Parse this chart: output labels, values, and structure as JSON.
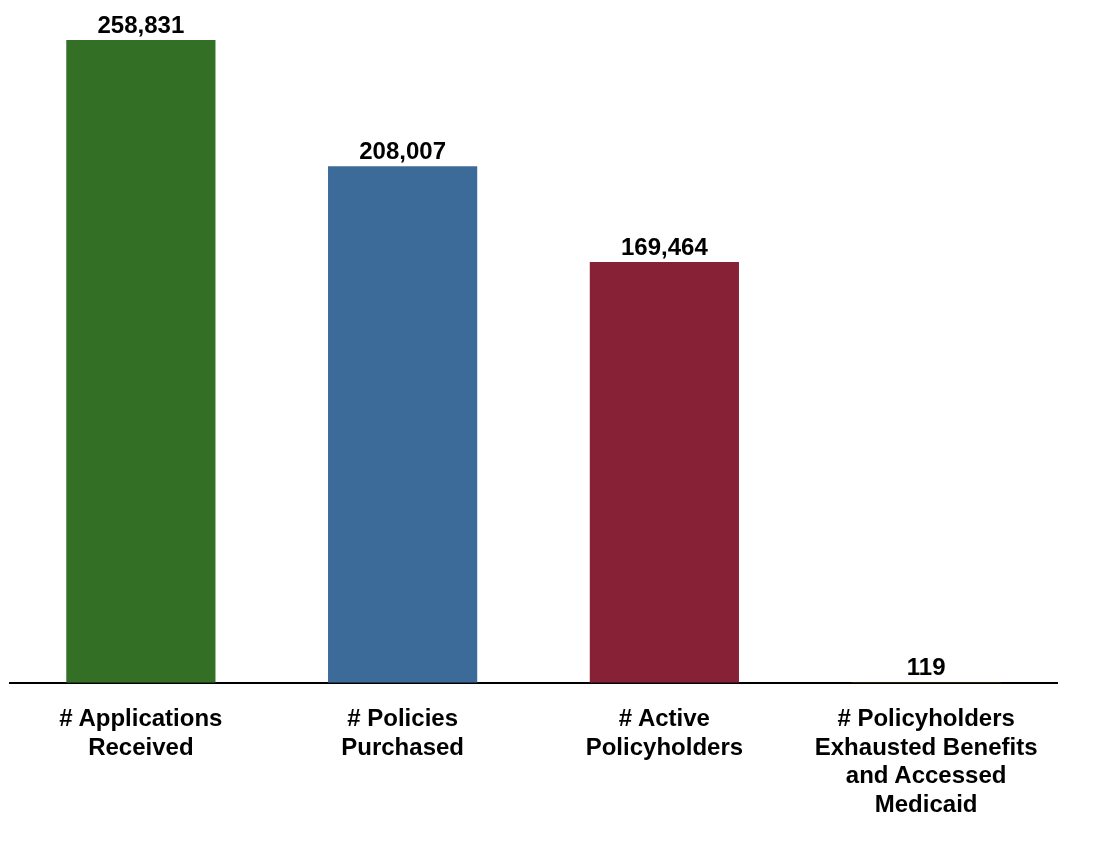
{
  "chart_data": {
    "type": "bar",
    "categories": [
      "# Applications Received",
      "# Policies Purchased",
      "# Active Policyholders",
      "# Policyholders Exhausted Benefits and Accessed Medicaid"
    ],
    "values": [
      258831,
      208007,
      169464,
      119
    ],
    "colors": [
      "#337025",
      "#3c6a99",
      "#872236",
      "#d97b0f"
    ],
    "value_labels": [
      "258,831",
      "208,007",
      "169,464",
      "119"
    ],
    "grid": false,
    "legend": false
  }
}
